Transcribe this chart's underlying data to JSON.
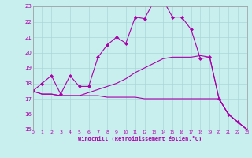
{
  "xlabel": "Windchill (Refroidissement éolien,°C)",
  "background_color": "#c8eeed",
  "grid_color": "#a8d8d8",
  "line_color": "#aa00aa",
  "xmin": 0,
  "xmax": 23,
  "ymin": 15,
  "ymax": 23,
  "series1_x": [
    0,
    1,
    2,
    3,
    4,
    5,
    6,
    7,
    8,
    9,
    10,
    11,
    12,
    13,
    14,
    15,
    16,
    17,
    18,
    19,
    20,
    21,
    22,
    23
  ],
  "series1_y": [
    17.5,
    18.0,
    18.5,
    17.3,
    18.5,
    17.8,
    17.8,
    19.7,
    20.5,
    21.0,
    20.6,
    22.3,
    22.2,
    23.3,
    23.4,
    22.3,
    22.3,
    21.5,
    19.6,
    19.7,
    17.0,
    16.0,
    15.5,
    15.0
  ],
  "series2_x": [
    0,
    1,
    2,
    3,
    4,
    5,
    6,
    7,
    8,
    9,
    10,
    11,
    12,
    13,
    14,
    15,
    16,
    17,
    18,
    19,
    20,
    21,
    22,
    23
  ],
  "series2_y": [
    17.5,
    17.3,
    17.3,
    17.2,
    17.2,
    17.2,
    17.4,
    17.6,
    17.8,
    18.0,
    18.3,
    18.7,
    19.0,
    19.3,
    19.6,
    19.7,
    19.7,
    19.7,
    19.8,
    19.7,
    17.0,
    16.0,
    15.5,
    15.0
  ],
  "series3_x": [
    0,
    1,
    2,
    3,
    4,
    5,
    6,
    7,
    8,
    9,
    10,
    11,
    12,
    13,
    14,
    15,
    16,
    17,
    18,
    19,
    20,
    21,
    22,
    23
  ],
  "series3_y": [
    17.5,
    17.3,
    17.3,
    17.2,
    17.2,
    17.2,
    17.2,
    17.2,
    17.1,
    17.1,
    17.1,
    17.1,
    17.0,
    17.0,
    17.0,
    17.0,
    17.0,
    17.0,
    17.0,
    17.0,
    17.0,
    16.0,
    15.5,
    15.0
  ],
  "yticks": [
    15,
    16,
    17,
    18,
    19,
    20,
    21,
    22,
    23
  ],
  "xticks": [
    0,
    1,
    2,
    3,
    4,
    5,
    6,
    7,
    8,
    9,
    10,
    11,
    12,
    13,
    14,
    15,
    16,
    17,
    18,
    19,
    20,
    21,
    22,
    23
  ],
  "marker": "D",
  "markersize": 2.0,
  "linewidth": 0.8
}
